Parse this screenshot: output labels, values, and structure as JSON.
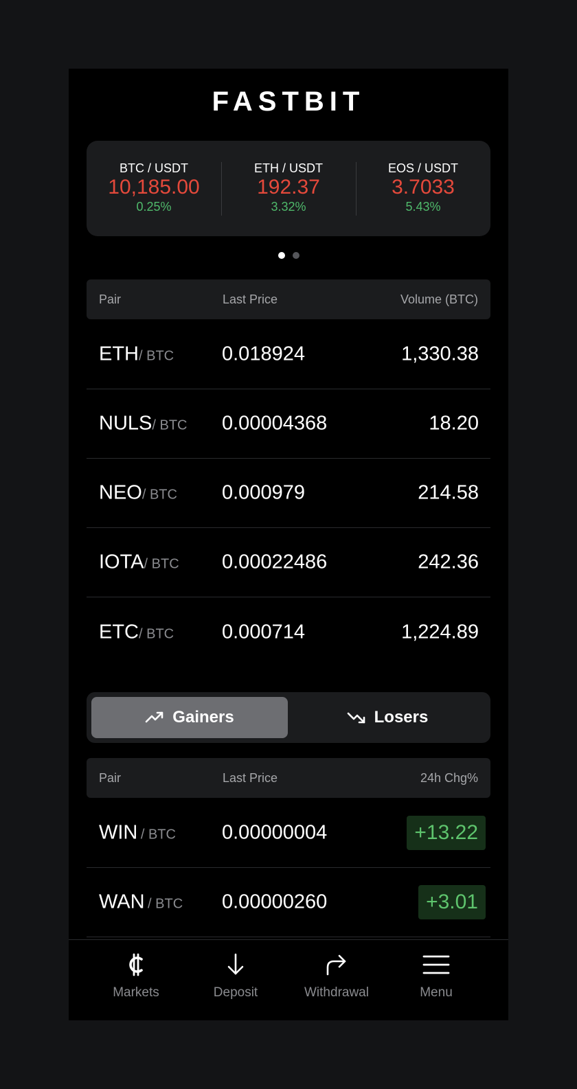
{
  "app": {
    "logo": "FASTBIT"
  },
  "tickers": [
    {
      "pair": "BTC / USDT",
      "price": "10,185.00",
      "change": "0.25%"
    },
    {
      "pair": "ETH / USDT",
      "price": "192.37",
      "change": "3.32%"
    },
    {
      "pair": "EOS / USDT",
      "price": "3.7033",
      "change": "5.43%"
    }
  ],
  "carousel": {
    "pages": 2,
    "active_page": 1
  },
  "markets_table": {
    "headers": [
      "Pair",
      "Last Price",
      "Volume (BTC)"
    ],
    "rows": [
      {
        "base": "ETH",
        "quote": "/ BTC",
        "price": "0.018924",
        "volume": "1,330.38"
      },
      {
        "base": "NULS",
        "quote": "/ BTC",
        "price": "0.00004368",
        "volume": "18.20"
      },
      {
        "base": "NEO",
        "quote": "/ BTC",
        "price": "0.000979",
        "volume": "214.58"
      },
      {
        "base": "IOTA",
        "quote": "/ BTC",
        "price": "0.00022486",
        "volume": "242.36"
      },
      {
        "base": "ETC",
        "quote": "/ BTC",
        "price": "0.000714",
        "volume": "1,224.89"
      }
    ]
  },
  "movers_toggle": {
    "gainers_label": "Gainers",
    "losers_label": "Losers",
    "active": "Gainers"
  },
  "movers_table": {
    "headers": [
      "Pair",
      "Last Price",
      "24h Chg%"
    ],
    "rows": [
      {
        "base": "WIN",
        "quote": "/ BTC",
        "price": "0.00000004",
        "change": "+13.22"
      },
      {
        "base": "WAN",
        "quote": "/ BTC",
        "price": "0.00000260",
        "change": "+3.01"
      }
    ]
  },
  "bottom_nav": {
    "items": [
      {
        "label": "Markets",
        "icon": "bitcoin-icon"
      },
      {
        "label": "Deposit",
        "icon": "arrow-down-icon"
      },
      {
        "label": "Withdrawal",
        "icon": "share-arrow-icon"
      },
      {
        "label": "Menu",
        "icon": "hamburger-menu-icon"
      }
    ]
  },
  "colors": {
    "background": "#131416",
    "screen": "#000000",
    "card": "#1b1c1e",
    "price_red": "#e4493b",
    "change_green": "#4fb96b",
    "gain_badge_bg": "#163019",
    "toggle_active": "#6d6e72"
  }
}
